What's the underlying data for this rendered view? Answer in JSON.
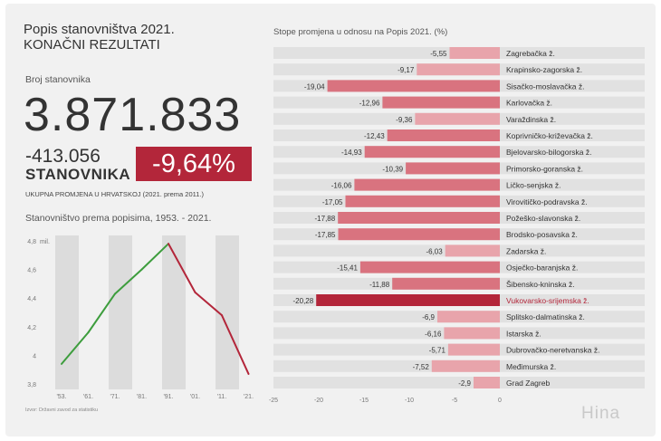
{
  "header": {
    "title_line1": "Popis stanovništva 2021.",
    "title_line2": "KONAČNI REZULTATI",
    "population_label": "Broj stanovnika",
    "population_value": "3.871.833",
    "change_value": "-413.056",
    "change_unit": "STANOVNIKA",
    "change_percent": "-9,64%",
    "change_description": "UKUPNA PROMJENA U HRVATSKOJ (2021. prema 2011.)"
  },
  "source_note": "Izvor: Državni zavod za statistiku",
  "logo_text": "Hina",
  "colors": {
    "increase": "#3d9d3d",
    "decrease": "#b3263a",
    "bar": "#d9737f",
    "bar_light": "#e8a4ab",
    "highlight": "#b3263a"
  },
  "chart_data": [
    {
      "type": "line",
      "title": "Stanovništvo prema popisima, 1953. - 2021.",
      "y_unit": "mil.",
      "x": [
        "'53.",
        "'61.",
        "'71.",
        "'81.",
        "'91.",
        "'01.",
        "'11.",
        "'21."
      ],
      "y_ticks": [
        "4,8",
        "4,6",
        "4,4",
        "4,2",
        "4",
        "3,8"
      ],
      "ylim": [
        3.8,
        4.8
      ],
      "grid": true,
      "series": [
        {
          "values": [
            3.94,
            4.16,
            4.43,
            4.6,
            4.78,
            4.44,
            4.28,
            3.87
          ]
        }
      ]
    },
    {
      "type": "bar",
      "orientation": "horizontal",
      "title": "Stope promjena u odnosu na Popis 2021. (%)",
      "x_ticks": [
        "-25",
        "-20",
        "-15",
        "-10",
        "-5",
        "0"
      ],
      "xlim": [
        -25,
        0
      ],
      "highlight": "Vukovarsko-srijemska ž.",
      "categories": [
        "Zagrebačka ž.",
        "Krapinsko-zagorska ž.",
        "Sisačko-moslavačka ž.",
        "Karlovačka ž.",
        "Varaždinska ž.",
        "Koprivničko-križevačka ž.",
        "Bjelovarsko-bilogorska ž.",
        "Primorsko-goranska ž.",
        "Ličko-senjska ž.",
        "Virovitičko-podravska ž.",
        "Požeško-slavonska ž.",
        "Brodsko-posavska ž.",
        "Zadarska ž.",
        "Osječko-baranjska ž.",
        "Šibensko-kninska ž.",
        "Vukovarsko-srijemska ž.",
        "Splitsko-dalmatinska ž.",
        "Istarska ž.",
        "Dubrovačko-neretvanska ž.",
        "Međimurska ž.",
        "Grad Zagreb"
      ],
      "values": [
        -5.55,
        -9.17,
        -19.04,
        -12.96,
        -9.36,
        -12.43,
        -14.93,
        -10.39,
        -16.06,
        -17.05,
        -17.88,
        -17.85,
        -6.03,
        -15.41,
        -11.88,
        -20.28,
        -6.9,
        -6.16,
        -5.71,
        -7.52,
        -2.9
      ],
      "value_labels": [
        "-5,55",
        "-9,17",
        "-19,04",
        "-12,96",
        "-9,36",
        "-12,43",
        "-14,93",
        "-10,39",
        "-16,06",
        "-17,05",
        "-17,88",
        "-17,85",
        "-6,03",
        "-15,41",
        "-11,88",
        "-20,28",
        "-6,9",
        "-6,16",
        "-5,71",
        "-7,52",
        "-2,9"
      ]
    }
  ]
}
